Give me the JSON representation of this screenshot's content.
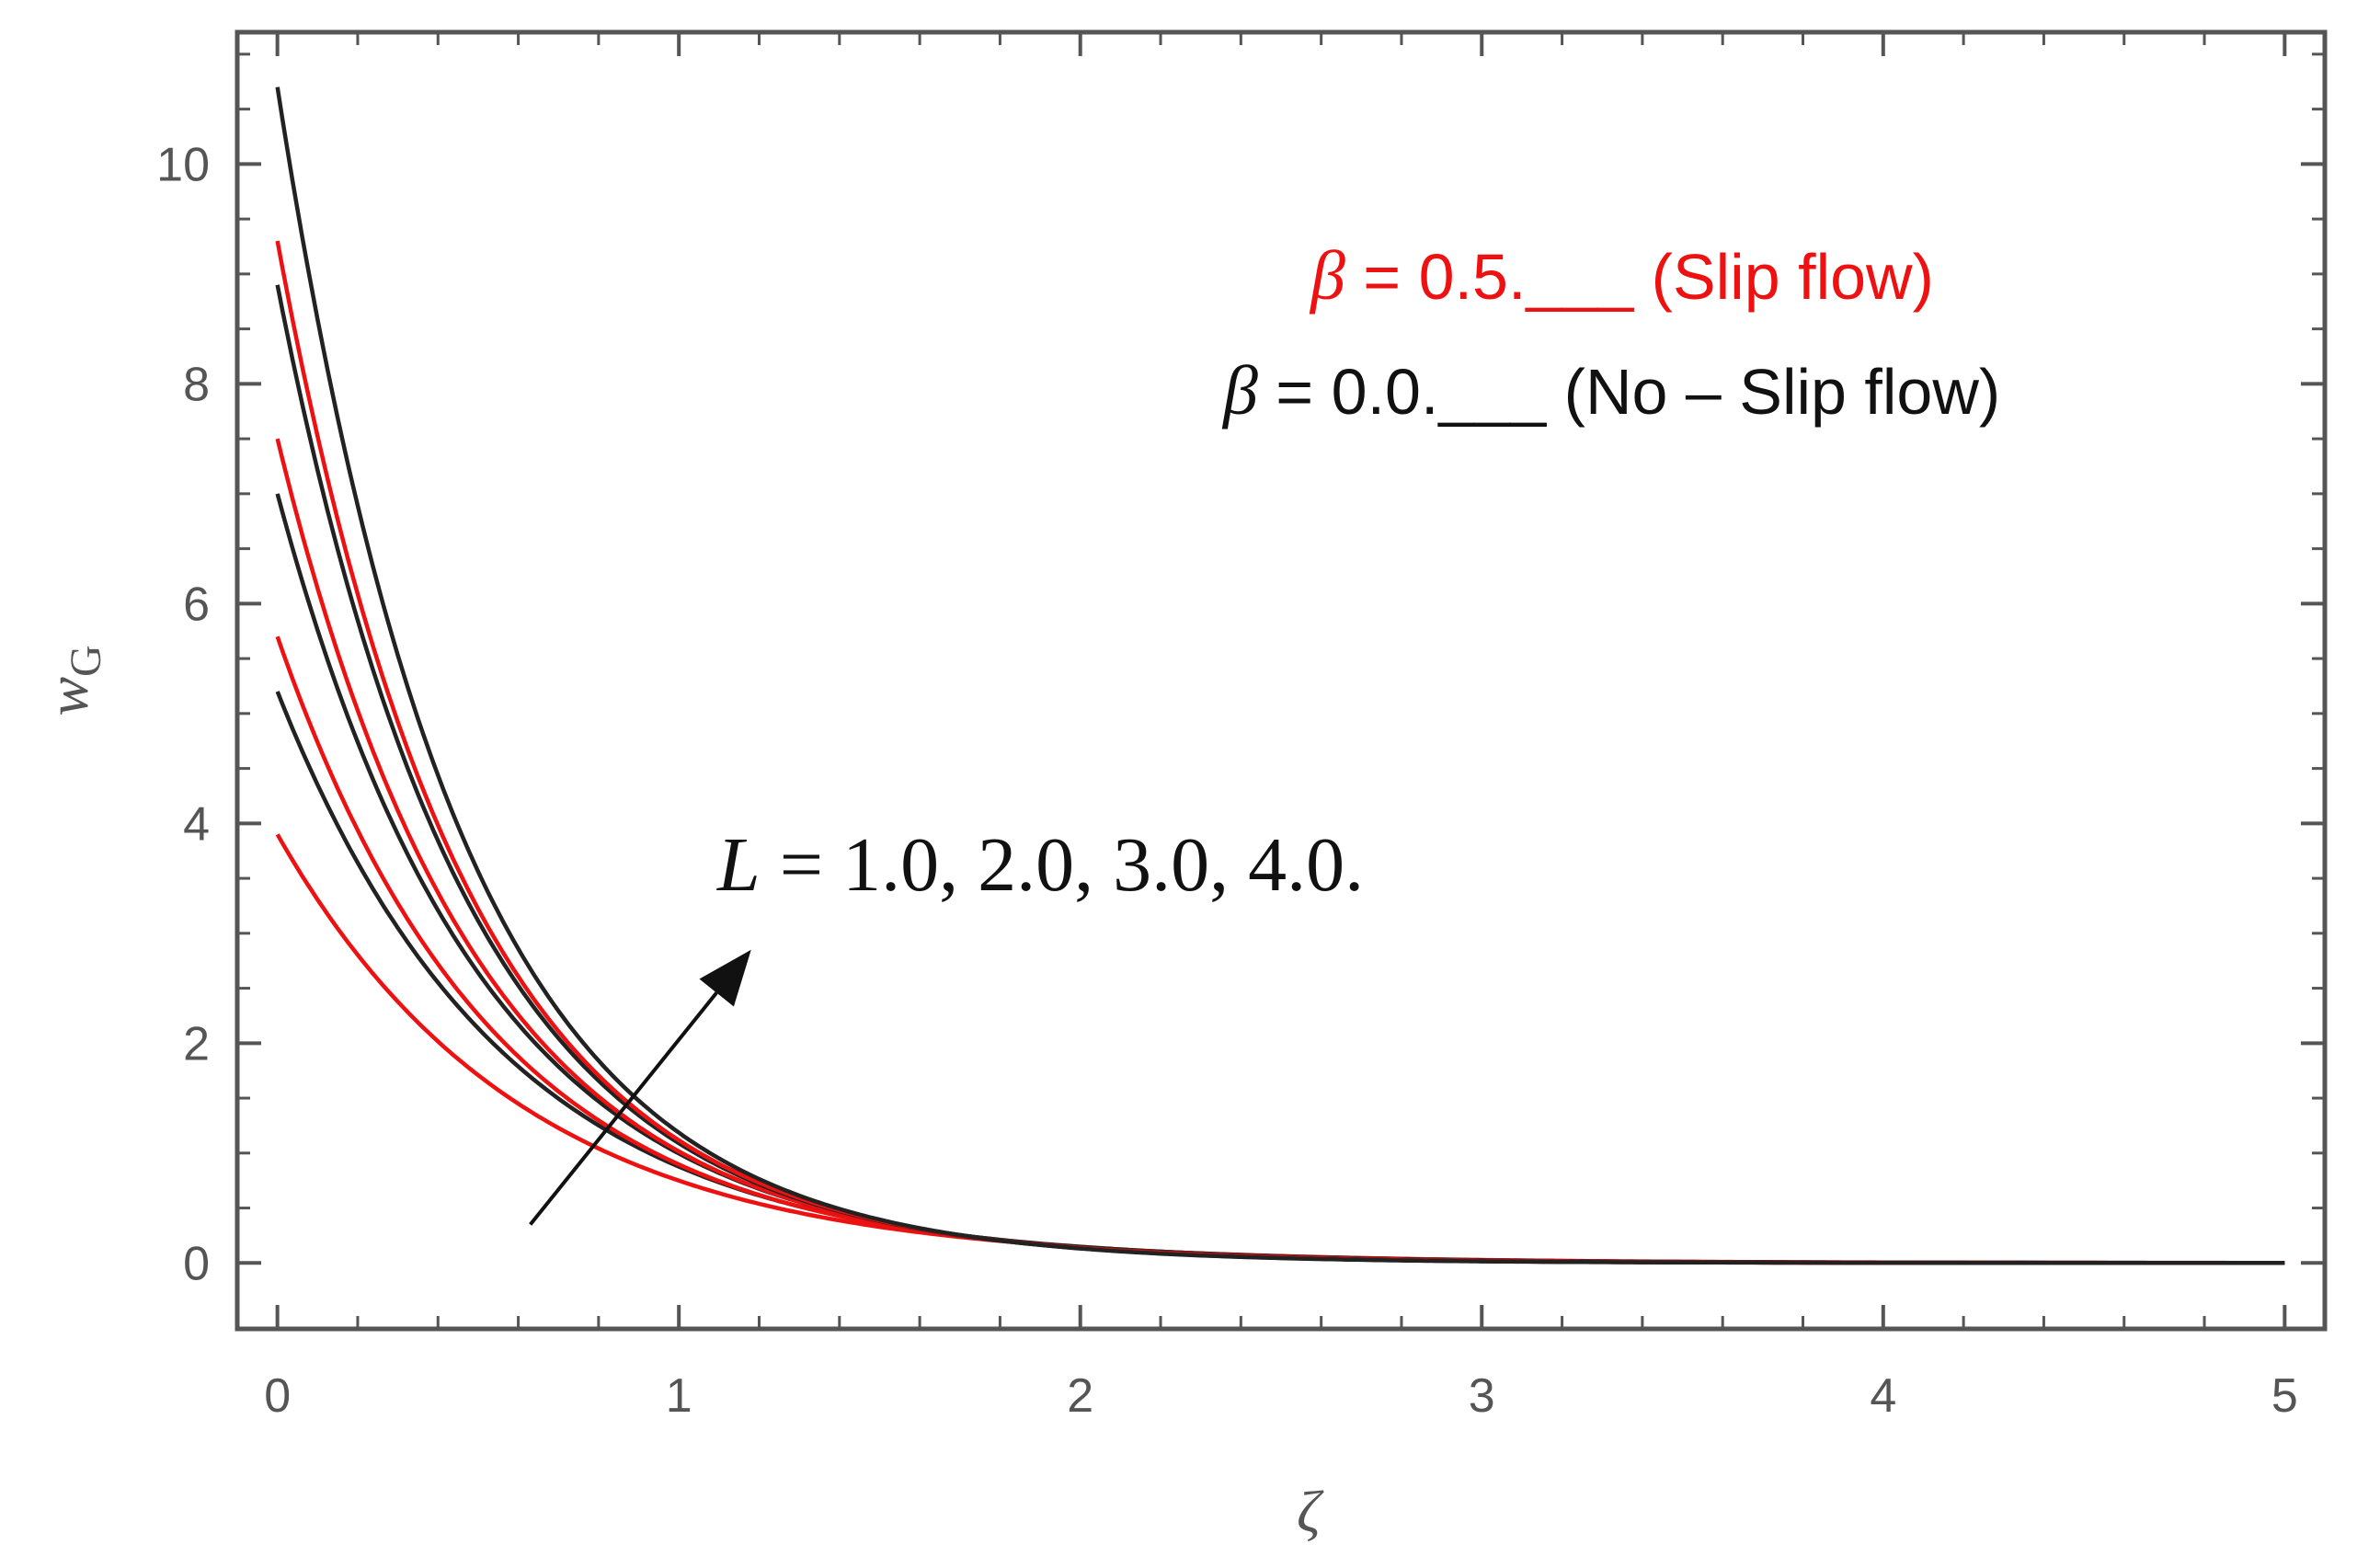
{
  "chart_data": {
    "type": "line",
    "xlabel": "ζ",
    "ylabel": "w_G",
    "ylabel_main": "w",
    "ylabel_sub": "G",
    "xlim": [
      -0.1,
      5.1
    ],
    "ylim": [
      -0.6,
      11.2
    ],
    "x_ticks": [
      0,
      1,
      2,
      3,
      4,
      5
    ],
    "x_tick_labels": [
      "0",
      "1",
      "2",
      "3",
      "4",
      "5"
    ],
    "y_ticks": [
      0,
      2,
      4,
      6,
      8,
      10
    ],
    "y_tick_labels": [
      "0",
      "2",
      "4",
      "6",
      "8",
      "10"
    ],
    "grid": false,
    "frame": true,
    "series": [
      {
        "color": "#ee1111",
        "y0": 3.9,
        "decay": 1.65
      },
      {
        "color": "#222222",
        "y0": 5.2,
        "decay": 1.78
      },
      {
        "color": "#ee1111",
        "y0": 5.7,
        "decay": 1.85
      },
      {
        "color": "#222222",
        "y0": 7.0,
        "decay": 1.95
      },
      {
        "color": "#ee1111",
        "y0": 7.5,
        "decay": 2.0
      },
      {
        "color": "#222222",
        "y0": 8.9,
        "decay": 2.1
      },
      {
        "color": "#ee1111",
        "y0": 9.3,
        "decay": 2.12
      },
      {
        "color": "#222222",
        "y0": 10.7,
        "decay": 2.2
      }
    ],
    "legend": [
      {
        "symbol": "β",
        "text": " = 0.5.___ (Slip flow)",
        "color": "#ee1111"
      },
      {
        "symbol": "β",
        "text": " = 0.0.___ (No – Slip flow)",
        "color": "#111111"
      }
    ],
    "annotation": {
      "variable": "L",
      "text": " = 1.0, 2.0, 3.0, 4.0.",
      "arrow_from": [
        0.63,
        0.35
      ],
      "arrow_to": [
        1.18,
        2.85
      ]
    }
  }
}
